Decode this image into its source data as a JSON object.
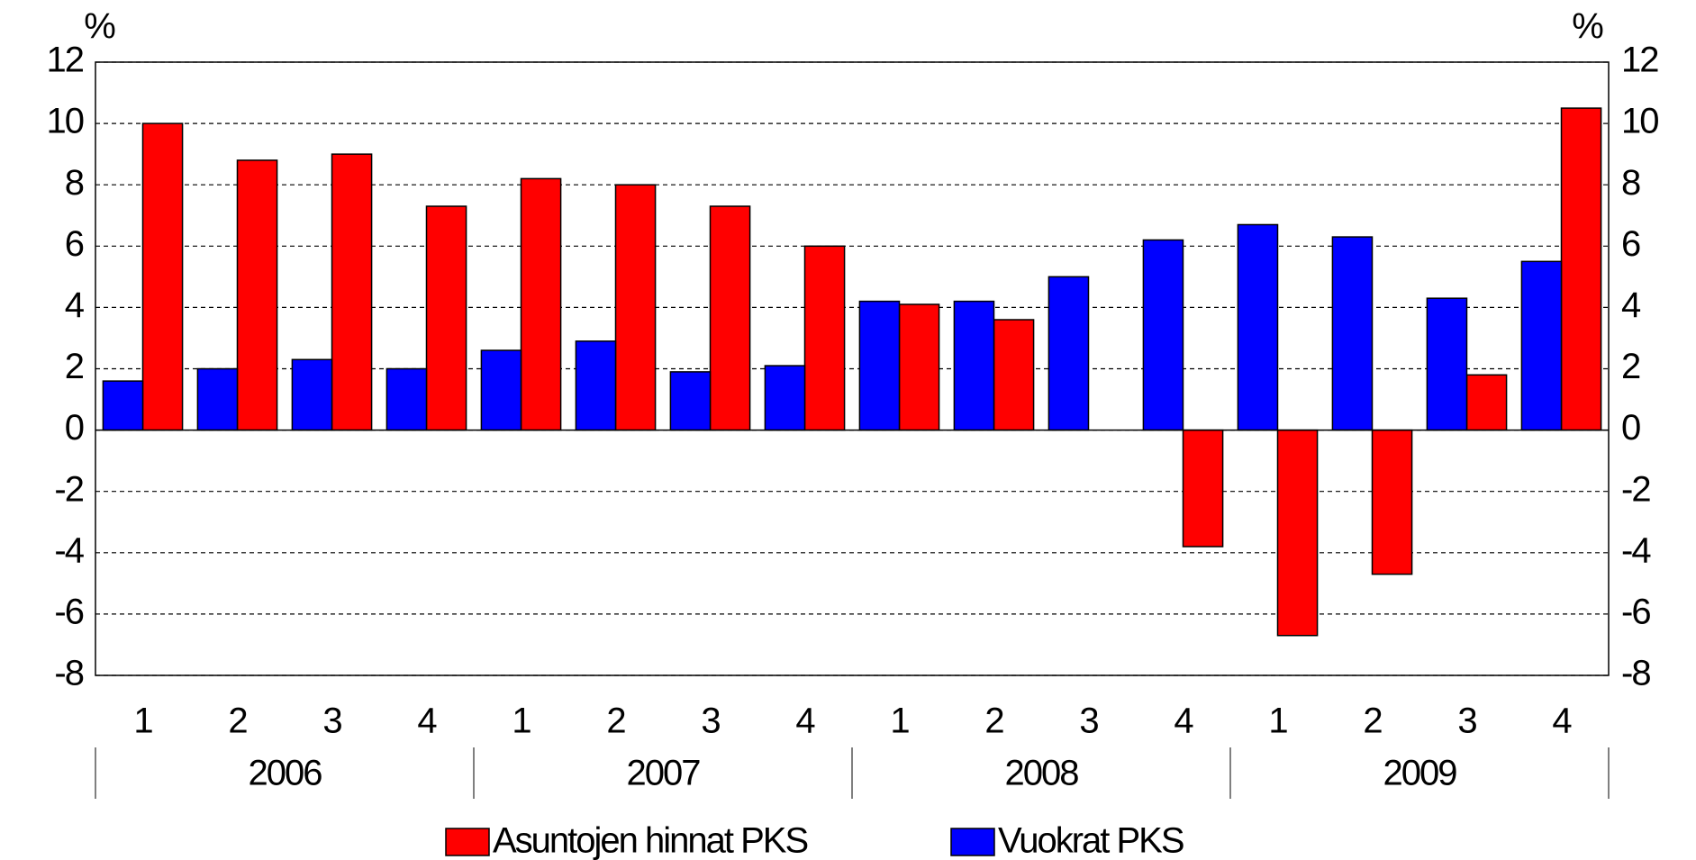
{
  "chart_data": {
    "type": "bar",
    "y_unit_label": "%",
    "y2_unit_label": "%",
    "categories": [
      "1",
      "2",
      "3",
      "4",
      "1",
      "2",
      "3",
      "4",
      "1",
      "2",
      "3",
      "4",
      "1",
      "2",
      "3",
      "4"
    ],
    "groups": [
      {
        "label": "2006",
        "span": 4
      },
      {
        "label": "2007",
        "span": 4
      },
      {
        "label": "2008",
        "span": 4
      },
      {
        "label": "2009",
        "span": 4
      }
    ],
    "series": [
      {
        "name": "Asuntojen hinnat PKS",
        "color": "#ff0000",
        "values": [
          10,
          8.8,
          9.0,
          7.3,
          8.2,
          8.0,
          7.3,
          6.0,
          4.1,
          3.6,
          0,
          -3.8,
          -6.7,
          -4.7,
          1.8,
          10.5
        ]
      },
      {
        "name": "Vuokrat PKS",
        "color": "#0000ff",
        "values": [
          1.6,
          2.0,
          2.3,
          2.0,
          2.6,
          2.9,
          1.9,
          2.1,
          4.2,
          4.2,
          5.0,
          6.2,
          6.7,
          6.3,
          4.3,
          5.5
        ]
      }
    ],
    "ylim": [
      -8,
      12
    ],
    "yticks": [
      -8,
      -6,
      -4,
      -2,
      0,
      2,
      4,
      6,
      8,
      10,
      12
    ],
    "y2lim": [
      -8,
      12
    ],
    "y2ticks": [
      -8,
      -6,
      -4,
      -2,
      0,
      2,
      4,
      6,
      8,
      10,
      12
    ],
    "grid": true
  }
}
